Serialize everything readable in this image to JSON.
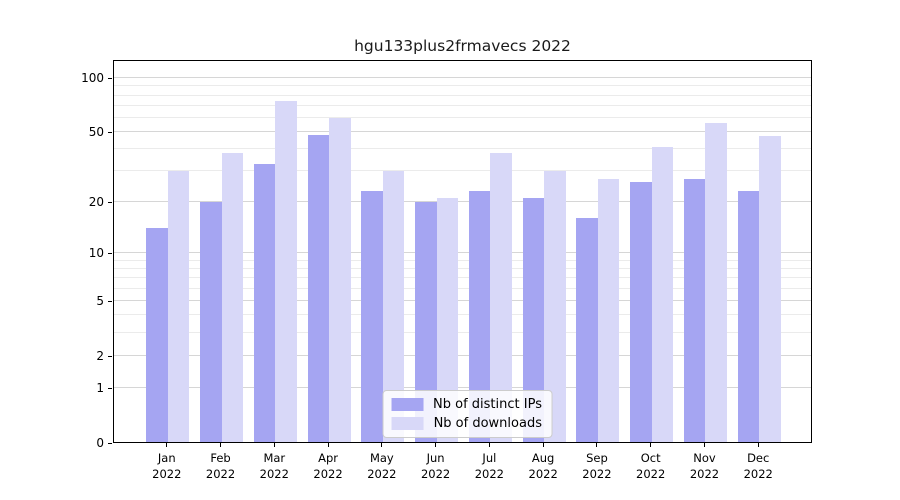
{
  "title": "hgu133plus2frmavecs 2022",
  "colors": {
    "distinct_ips_bar": "#a5a5f2",
    "downloads_bar": "#d8d8f8",
    "grid_major": "#d6d6d6",
    "grid_minor": "#ebebeb",
    "axis": "#000000",
    "legend_border": "#cccccc"
  },
  "y_axis": {
    "scale": "log1p",
    "tick_labels": [
      "100",
      "50",
      "20",
      "10",
      "5",
      "2",
      "1",
      "0"
    ],
    "tick_values": [
      100,
      50,
      20,
      10,
      5,
      2,
      1,
      0
    ],
    "minor_grid_values": [
      90,
      80,
      70,
      60,
      40,
      30,
      9,
      8,
      7,
      6,
      4,
      3
    ],
    "top_value": 127
  },
  "legend": {
    "items": [
      {
        "label": "Nb of distinct IPs",
        "color_key": "distinct_ips_bar"
      },
      {
        "label": "Nb of downloads",
        "color_key": "downloads_bar"
      }
    ]
  },
  "chart_data": {
    "type": "bar",
    "title": "hgu133plus2frmavecs 2022",
    "categories": [
      "Jan 2022",
      "Feb 2022",
      "Mar 2022",
      "Apr 2022",
      "May 2022",
      "Jun 2022",
      "Jul 2022",
      "Aug 2022",
      "Sep 2022",
      "Oct 2022",
      "Nov 2022",
      "Dec 2022"
    ],
    "series": [
      {
        "name": "Nb of distinct IPs",
        "values": [
          14,
          20,
          33,
          48,
          23,
          20,
          23,
          21,
          16,
          26,
          27,
          23
        ]
      },
      {
        "name": "Nb of downloads",
        "values": [
          30,
          38,
          74,
          60,
          30,
          21,
          38,
          30,
          27,
          41,
          56,
          47
        ]
      }
    ],
    "xlabel": "",
    "ylabel": "",
    "ylim": [
      0,
      127
    ],
    "yscale": "log1p",
    "grid": true,
    "legend_position": "lower center"
  }
}
